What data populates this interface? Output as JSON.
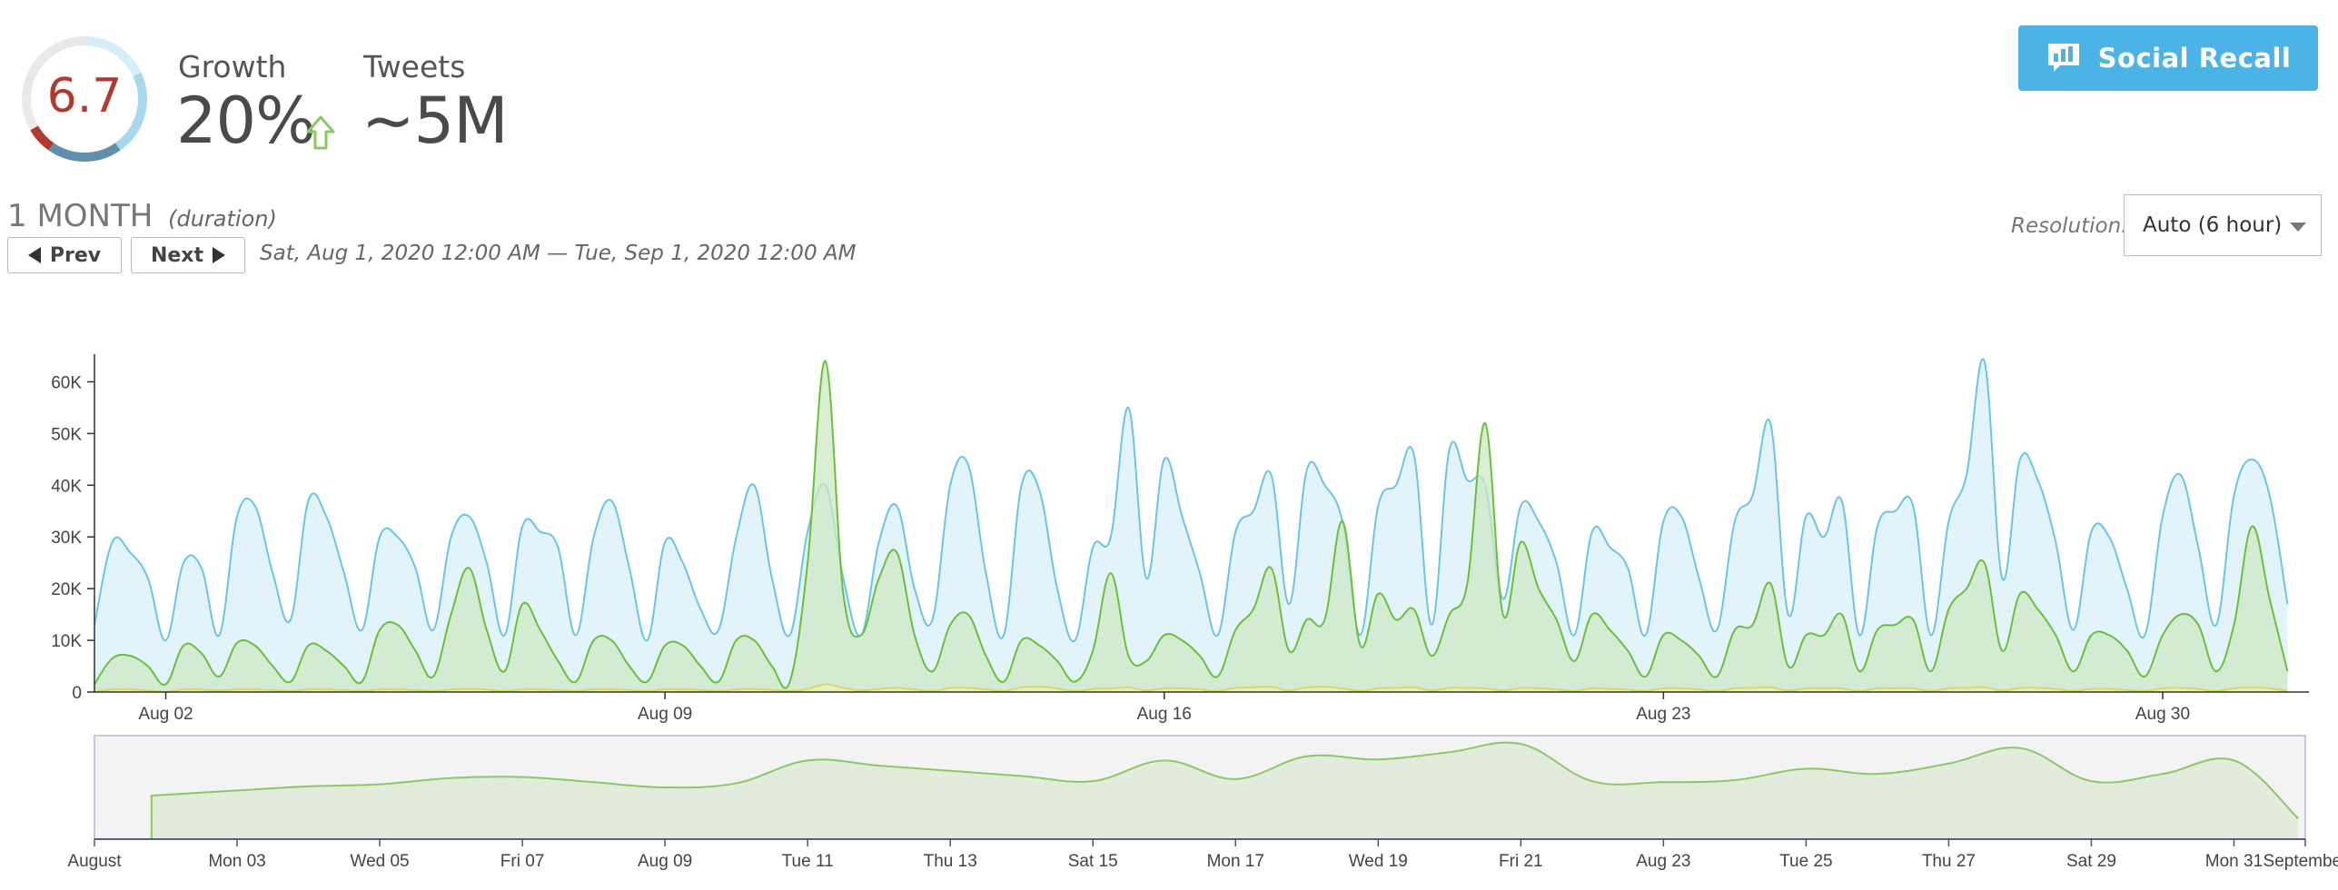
{
  "score": {
    "value": "6.7",
    "fraction": 0.67,
    "ring_colors": {
      "track": "#e9e9e9",
      "low": "#b03a2e",
      "mid": "#5f8fad",
      "high": "#a9d8ee",
      "top": "#d6eef9"
    }
  },
  "metrics": {
    "growth": {
      "label": "Growth",
      "value": "20%",
      "direction": "up",
      "arrow_color": "#8cc864"
    },
    "tweets": {
      "label": "Tweets",
      "value": "~5M"
    }
  },
  "social_recall": {
    "label": "Social Recall",
    "icon": "chart-speech-icon",
    "color": "#4bb3e6"
  },
  "duration": {
    "title": "1 MONTH",
    "note": "(duration)",
    "prev_label": "Prev",
    "next_label": "Next",
    "range": "Sat, Aug 1, 2020 12:00 AM — Tue, Sep 1, 2020 12:00 AM"
  },
  "resolution": {
    "label": "Resolution:",
    "value": "Auto (6 hour)"
  },
  "chart_data": [
    {
      "type": "area",
      "x_unit": "day of August 2020 (6-hour resolution)",
      "x": [
        1,
        1.25,
        1.5,
        1.75,
        2,
        2.25,
        2.5,
        2.75,
        3,
        3.25,
        3.5,
        3.75,
        4,
        4.25,
        4.5,
        4.75,
        5,
        5.25,
        5.5,
        5.75,
        6,
        6.25,
        6.5,
        6.75,
        7,
        7.25,
        7.5,
        7.75,
        8,
        8.25,
        8.5,
        8.75,
        9,
        9.25,
        9.5,
        9.75,
        10,
        10.25,
        10.5,
        10.75,
        11,
        11.25,
        11.5,
        11.75,
        12,
        12.25,
        12.5,
        12.75,
        13,
        13.25,
        13.5,
        13.75,
        14,
        14.25,
        14.5,
        14.75,
        15,
        15.25,
        15.5,
        15.75,
        16,
        16.25,
        16.5,
        16.75,
        17,
        17.25,
        17.5,
        17.75,
        18,
        18.25,
        18.5,
        18.75,
        19,
        19.25,
        19.5,
        19.75,
        20,
        20.25,
        20.5,
        20.75,
        21,
        21.25,
        21.5,
        21.75,
        22,
        22.25,
        22.5,
        22.75,
        23,
        23.25,
        23.5,
        23.75,
        24,
        24.25,
        24.5,
        24.75,
        25,
        25.25,
        25.5,
        25.75,
        26,
        26.25,
        26.5,
        26.75,
        27,
        27.25,
        27.5,
        27.75,
        28,
        28.25,
        28.5,
        28.75,
        29,
        29.25,
        29.5,
        29.75,
        30,
        30.25,
        30.5,
        30.75,
        31,
        31.25,
        31.5,
        31.75
      ],
      "series": [
        {
          "color": "#6cc5e4",
          "fill": "#dff3fa",
          "values": [
            13000,
            29000,
            27000,
            22000,
            10000,
            25000,
            24000,
            11000,
            34000,
            36000,
            23000,
            14000,
            37000,
            34000,
            23000,
            12000,
            30000,
            30000,
            24000,
            12000,
            30000,
            34000,
            25000,
            11000,
            32000,
            31000,
            28000,
            11000,
            30000,
            37000,
            24000,
            10000,
            29000,
            25000,
            16000,
            12000,
            30000,
            40000,
            22000,
            11000,
            31000,
            40000,
            22000,
            11000,
            29000,
            36000,
            20000,
            14000,
            40000,
            44000,
            23000,
            11000,
            40000,
            39000,
            20000,
            10000,
            28000,
            30000,
            55000,
            22000,
            45000,
            34000,
            23000,
            11000,
            31000,
            35000,
            42000,
            17000,
            43000,
            40000,
            33000,
            11000,
            36000,
            40000,
            46000,
            13000,
            47000,
            41000,
            40000,
            18000,
            36000,
            33000,
            25000,
            11000,
            31000,
            28000,
            24000,
            11000,
            33000,
            34000,
            22000,
            12000,
            33000,
            38000,
            52000,
            15000,
            34000,
            30000,
            37000,
            11000,
            32000,
            35000,
            36000,
            11000,
            33000,
            42000,
            64000,
            22000,
            45000,
            41000,
            29000,
            12000,
            31000,
            30000,
            20000,
            11000,
            34000,
            42000,
            28000,
            13000,
            38000,
            45000,
            38000,
            17000
          ]
        },
        {
          "color": "#6cbf3c",
          "fill": "#cce8c4",
          "values": [
            1500,
            6500,
            7000,
            5000,
            1500,
            9000,
            7500,
            3000,
            9500,
            9000,
            5000,
            2000,
            9000,
            8000,
            5000,
            2000,
            12000,
            13000,
            8000,
            3000,
            15000,
            24000,
            12000,
            4000,
            17000,
            12000,
            6000,
            2000,
            10000,
            10000,
            5000,
            2000,
            9000,
            9000,
            5000,
            2000,
            10000,
            10000,
            5000,
            2000,
            25000,
            64000,
            19000,
            11000,
            22000,
            27000,
            11000,
            4000,
            13000,
            15000,
            7000,
            2000,
            10000,
            9000,
            6000,
            2000,
            8000,
            23000,
            7000,
            6000,
            11000,
            10000,
            7000,
            3000,
            12000,
            16000,
            24000,
            8000,
            14000,
            14000,
            33000,
            9000,
            19000,
            14000,
            16000,
            7000,
            15000,
            21000,
            52000,
            15000,
            29000,
            20000,
            14000,
            6000,
            15000,
            12000,
            8000,
            3000,
            11000,
            10000,
            7000,
            3000,
            12000,
            13000,
            21000,
            5000,
            11000,
            11000,
            15000,
            4000,
            12000,
            13000,
            14000,
            4000,
            16000,
            20000,
            25000,
            8000,
            19000,
            16000,
            11000,
            4000,
            11000,
            11000,
            8000,
            3000,
            11000,
            15000,
            13000,
            4000,
            13000,
            32000,
            18000,
            4000
          ]
        },
        {
          "color": "#d8d86a",
          "fill": "#eef2b0",
          "values": [
            0,
            500,
            500,
            300,
            0,
            500,
            500,
            300,
            500,
            500,
            400,
            200,
            500,
            500,
            400,
            200,
            500,
            500,
            400,
            200,
            500,
            600,
            500,
            200,
            500,
            500,
            400,
            200,
            500,
            500,
            400,
            200,
            500,
            500,
            400,
            200,
            500,
            600,
            400,
            200,
            600,
            1500,
            800,
            300,
            600,
            800,
            500,
            200,
            800,
            800,
            500,
            200,
            900,
            1000,
            700,
            200,
            600,
            700,
            900,
            300,
            700,
            700,
            500,
            200,
            800,
            900,
            1000,
            300,
            900,
            1000,
            700,
            200,
            700,
            800,
            900,
            300,
            800,
            800,
            700,
            300,
            800,
            700,
            500,
            200,
            700,
            600,
            500,
            200,
            700,
            700,
            500,
            200,
            700,
            800,
            900,
            300,
            700,
            700,
            700,
            200,
            700,
            700,
            700,
            200,
            700,
            800,
            900,
            300,
            800,
            800,
            600,
            200,
            600,
            600,
            400,
            200,
            700,
            800,
            600,
            200,
            700,
            900,
            700,
            200
          ]
        }
      ],
      "y_ticks": [
        "0",
        "10K",
        "20K",
        "30K",
        "40K",
        "50K",
        "60K"
      ],
      "ylim": [
        0,
        65000
      ],
      "x_ticks": [
        {
          "x": 2,
          "label": "Aug 02"
        },
        {
          "x": 9,
          "label": "Aug 09"
        },
        {
          "x": 16,
          "label": "Aug 16"
        },
        {
          "x": 23,
          "label": "Aug 23"
        },
        {
          "x": 30,
          "label": "Aug 30"
        }
      ],
      "xlim": [
        1,
        32
      ],
      "grid": false
    },
    {
      "type": "area",
      "x_unit": "day of August 2020",
      "color": "#8cc864",
      "fill": "#e2ebdc",
      "background": "#f3f3f3",
      "x": [
        1.8,
        3,
        4,
        5,
        6,
        7,
        8,
        9,
        10,
        11,
        12,
        13,
        14,
        15,
        16,
        17,
        18,
        19,
        20,
        21,
        22,
        23,
        24,
        25,
        26,
        27,
        28,
        29,
        30,
        31,
        31.9
      ],
      "values": [
        0.42,
        0.47,
        0.51,
        0.53,
        0.59,
        0.6,
        0.55,
        0.5,
        0.54,
        0.76,
        0.71,
        0.66,
        0.61,
        0.56,
        0.76,
        0.58,
        0.8,
        0.77,
        0.84,
        0.92,
        0.56,
        0.55,
        0.57,
        0.68,
        0.63,
        0.73,
        0.88,
        0.56,
        0.63,
        0.76,
        0.2
      ],
      "ylim": [
        0,
        1
      ],
      "x_ticks": [
        {
          "x": 1,
          "label": "August"
        },
        {
          "x": 3,
          "label": "Mon 03"
        },
        {
          "x": 5,
          "label": "Wed 05"
        },
        {
          "x": 7,
          "label": "Fri 07"
        },
        {
          "x": 9,
          "label": "Aug 09"
        },
        {
          "x": 11,
          "label": "Tue 11"
        },
        {
          "x": 13,
          "label": "Thu 13"
        },
        {
          "x": 15,
          "label": "Sat 15"
        },
        {
          "x": 17,
          "label": "Mon 17"
        },
        {
          "x": 19,
          "label": "Wed 19"
        },
        {
          "x": 21,
          "label": "Fri 21"
        },
        {
          "x": 23,
          "label": "Aug 23"
        },
        {
          "x": 25,
          "label": "Tue 25"
        },
        {
          "x": 27,
          "label": "Thu 27"
        },
        {
          "x": 29,
          "label": "Sat 29"
        },
        {
          "x": 31,
          "label": "Mon 31"
        },
        {
          "x": 32,
          "label": "September"
        }
      ],
      "xlim": [
        1,
        32
      ]
    }
  ]
}
